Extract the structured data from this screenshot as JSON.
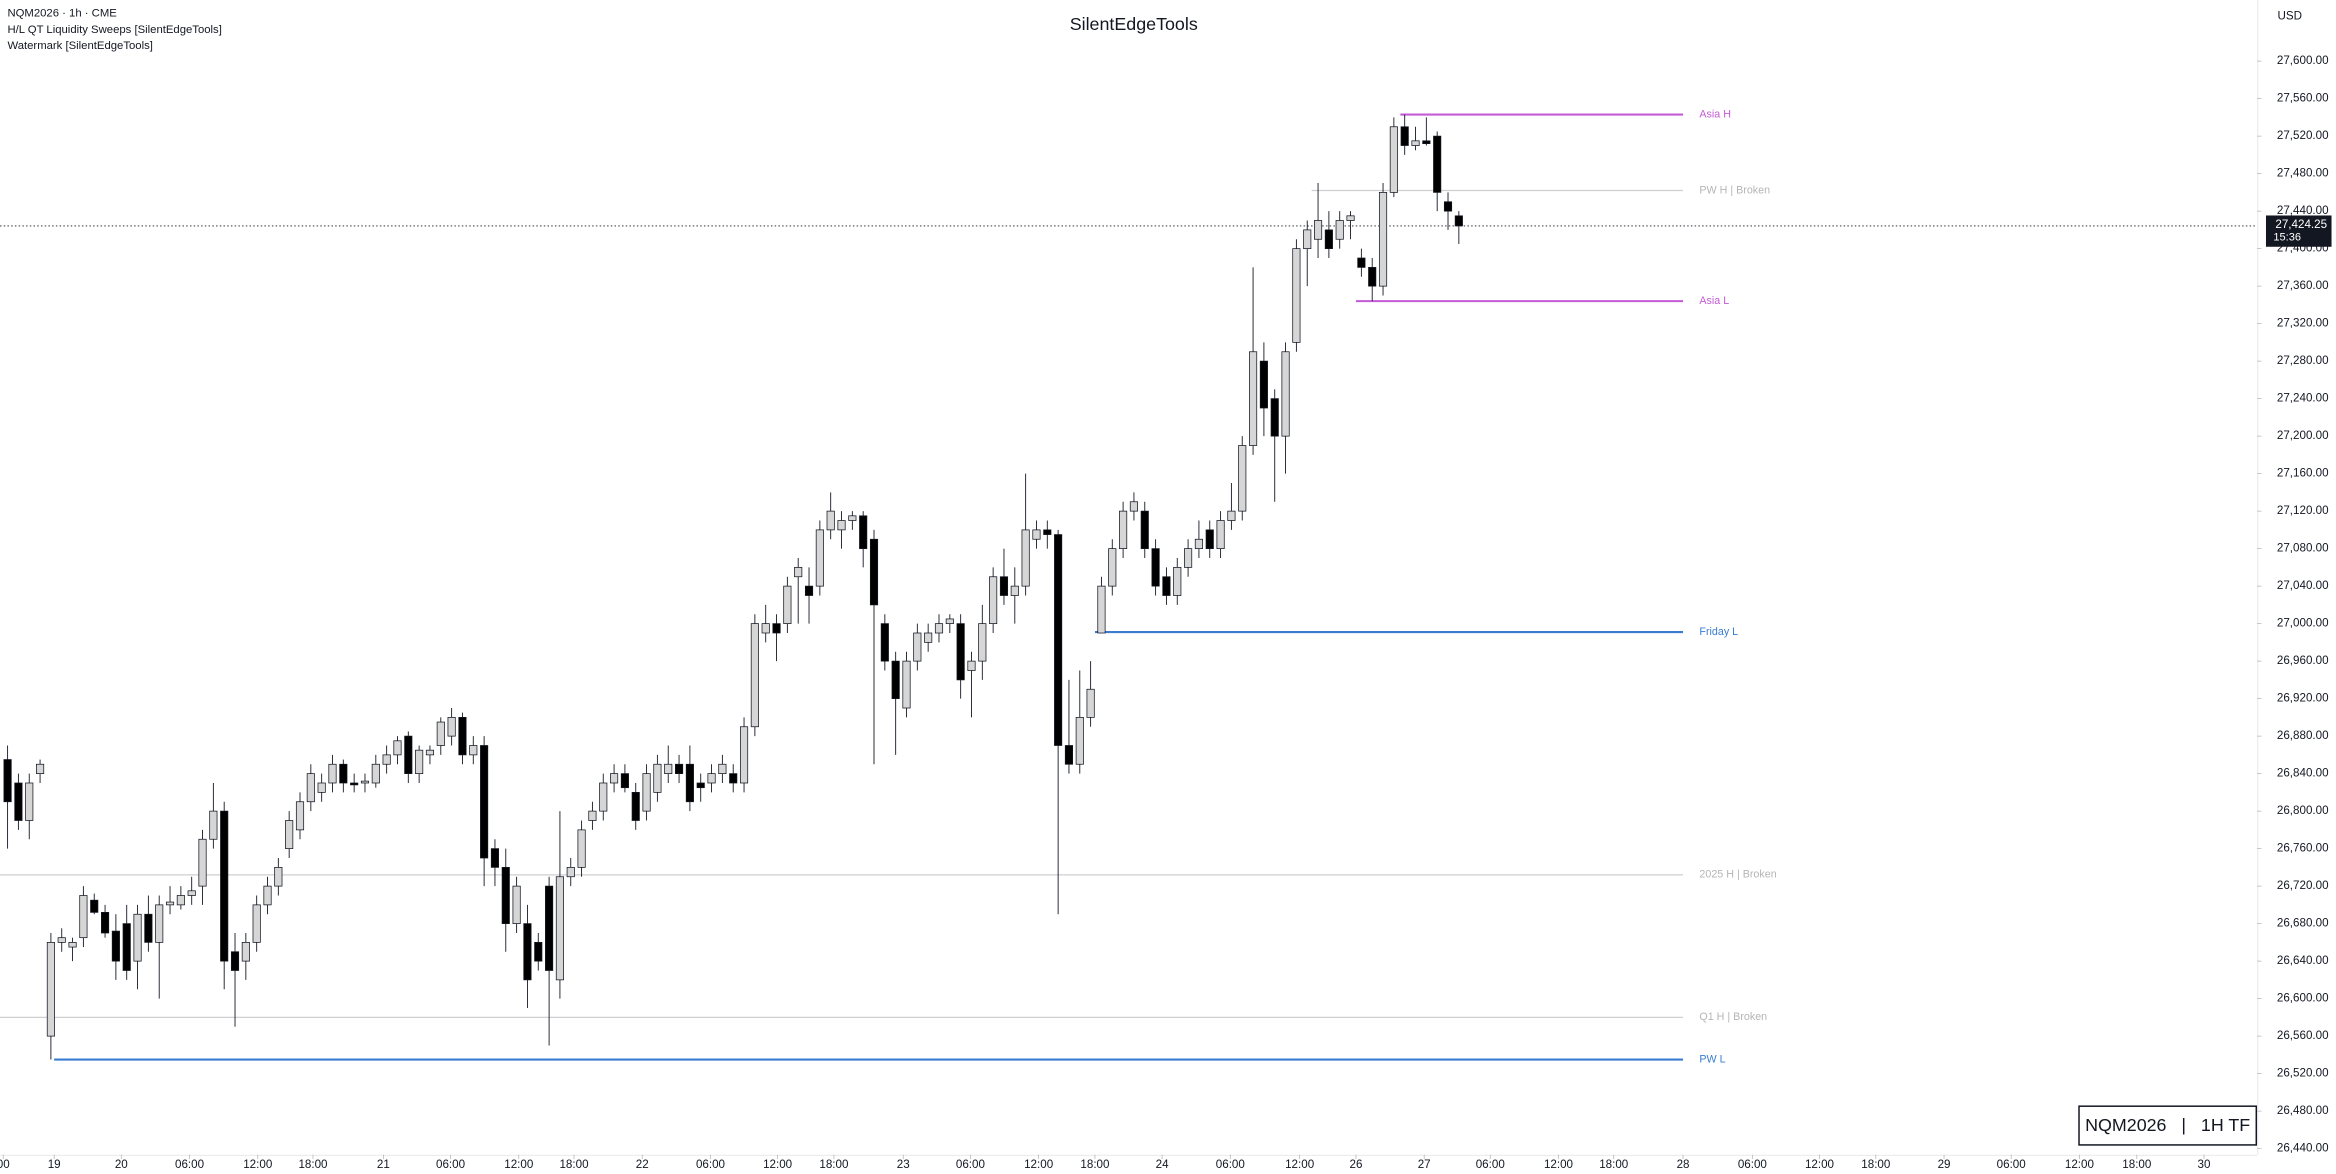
{
  "chart_data": {
    "type": "candlestick",
    "title": "SilentEdgeTools",
    "header": [
      "NQM2026 · 1h · CME",
      "H/L QT Liquidity Sweeps [SilentEdgeTools]",
      "Watermark [SilentEdgeTools]"
    ],
    "currency": "USD",
    "watermark": "NQM2026   |   1H TF",
    "up_color": "#d6d6d6",
    "down_color": "#000000",
    "xlim": [
      -0.7,
      207.7
    ],
    "ylim": [
      26433.6,
      27665.2
    ],
    "xticks": [
      {
        "value": -0.4,
        "label": "00"
      },
      {
        "value": 4.3,
        "label": "19"
      },
      {
        "value": 10.5,
        "label": "20"
      },
      {
        "value": 16.8,
        "label": "06:00"
      },
      {
        "value": 23.1,
        "label": "12:00"
      },
      {
        "value": 28.2,
        "label": "18:00"
      },
      {
        "value": 34.7,
        "label": "21"
      },
      {
        "value": 40.9,
        "label": "06:00"
      },
      {
        "value": 47.2,
        "label": "12:00"
      },
      {
        "value": 52.3,
        "label": "18:00"
      },
      {
        "value": 58.6,
        "label": "22"
      },
      {
        "value": 64.9,
        "label": "06:00"
      },
      {
        "value": 71.1,
        "label": "12:00"
      },
      {
        "value": 76.3,
        "label": "18:00"
      },
      {
        "value": 82.7,
        "label": "23"
      },
      {
        "value": 88.9,
        "label": "06:00"
      },
      {
        "value": 95.2,
        "label": "12:00"
      },
      {
        "value": 100.4,
        "label": "18:00"
      },
      {
        "value": 106.6,
        "label": "24"
      },
      {
        "value": 112.9,
        "label": "06:00"
      },
      {
        "value": 119.3,
        "label": "12:00"
      },
      {
        "value": 124.5,
        "label": "26"
      },
      {
        "value": 130.8,
        "label": "27"
      },
      {
        "value": 136.9,
        "label": "06:00"
      },
      {
        "value": 143.2,
        "label": "12:00"
      },
      {
        "value": 148.3,
        "label": "18:00"
      },
      {
        "value": 154.7,
        "label": "28"
      },
      {
        "value": 161.1,
        "label": "06:00"
      },
      {
        "value": 167.3,
        "label": "12:00"
      },
      {
        "value": 172.5,
        "label": "18:00"
      },
      {
        "value": 178.8,
        "label": "29"
      },
      {
        "value": 185.0,
        "label": "06:00"
      },
      {
        "value": 191.3,
        "label": "12:00"
      },
      {
        "value": 196.6,
        "label": "18:00"
      },
      {
        "value": 202.8,
        "label": "30"
      }
    ],
    "yticks": [
      {
        "value": 27600,
        "label": "27,600.00"
      },
      {
        "value": 27560,
        "label": "27,560.00"
      },
      {
        "value": 27520,
        "label": "27,520.00"
      },
      {
        "value": 27480,
        "label": "27,480.00"
      },
      {
        "value": 27440,
        "label": "27,440.00"
      },
      {
        "value": 27400,
        "label": "27,400.00"
      },
      {
        "value": 27360,
        "label": "27,360.00"
      },
      {
        "value": 27320,
        "label": "27,320.00"
      },
      {
        "value": 27280,
        "label": "27,280.00"
      },
      {
        "value": 27240,
        "label": "27,240.00"
      },
      {
        "value": 27200,
        "label": "27,200.00"
      },
      {
        "value": 27160,
        "label": "27,160.00"
      },
      {
        "value": 27120,
        "label": "27,120.00"
      },
      {
        "value": 27080,
        "label": "27,080.00"
      },
      {
        "value": 27040,
        "label": "27,040.00"
      },
      {
        "value": 27000,
        "label": "27,000.00"
      },
      {
        "value": 26960,
        "label": "26,960.00"
      },
      {
        "value": 26920,
        "label": "26,920.00"
      },
      {
        "value": 26880,
        "label": "26,880.00"
      },
      {
        "value": 26840,
        "label": "26,840.00"
      },
      {
        "value": 26800,
        "label": "26,800.00"
      },
      {
        "value": 26760,
        "label": "26,760.00"
      },
      {
        "value": 26720,
        "label": "26,720.00"
      },
      {
        "value": 26680,
        "label": "26,680.00"
      },
      {
        "value": 26640,
        "label": "26,640.00"
      },
      {
        "value": 26600,
        "label": "26,600.00"
      },
      {
        "value": 26560,
        "label": "26,560.00"
      },
      {
        "value": 26520,
        "label": "26,520.00"
      },
      {
        "value": 26480,
        "label": "26,480.00"
      },
      {
        "value": 26440,
        "label": "26,440.00"
      }
    ],
    "last_price": 27424.25,
    "last_price_label": "27,424.25",
    "countdown": "15:36",
    "level_end": 154.7,
    "levels": [
      {
        "name": "Asia H",
        "value": 27543,
        "start": 128.6,
        "color": "#c45ad6",
        "label_color": "#c45ad6",
        "width": 1.4
      },
      {
        "name": "PW H | Broken",
        "value": 27462,
        "start": 120.4,
        "color": "#cfcfcf",
        "label_color": "#b5b5b5",
        "width": 0.8
      },
      {
        "name": "Asia L",
        "value": 27344,
        "start": 124.5,
        "color": "#c45ad6",
        "label_color": "#c45ad6",
        "width": 1.4
      },
      {
        "name": "Friday L",
        "value": 26991,
        "start": 100.4,
        "color": "#3a7dd0",
        "label_color": "#3a7dd0",
        "width": 1.4
      },
      {
        "name": "2025 H | Broken",
        "value": 26732,
        "start": -0.7,
        "color": "#cfcfcf",
        "label_color": "#b5b5b5",
        "width": 0.8
      },
      {
        "name": "Q1 H | Broken",
        "value": 26580,
        "start": -0.7,
        "color": "#cfcfcf",
        "label_color": "#b5b5b5",
        "width": 0.8
      },
      {
        "name": "PW L",
        "value": 26535,
        "start": 4.3,
        "color": "#3a7dd0",
        "label_color": "#3a7dd0",
        "width": 1.4
      }
    ],
    "ohlc": [
      [
        26855,
        26870,
        26760,
        26810
      ],
      [
        26830,
        26840,
        26780,
        26790
      ],
      [
        26790,
        26840,
        26770,
        26830
      ],
      [
        26840,
        26855,
        26830,
        26850
      ],
      [
        26560,
        26670,
        26535,
        26660
      ],
      [
        26660,
        26675,
        26650,
        26665
      ],
      [
        26655,
        26665,
        26640,
        26660
      ],
      [
        26665,
        26720,
        26655,
        26710
      ],
      [
        26705,
        26712,
        26690,
        26692
      ],
      [
        26692,
        26700,
        26665,
        26670
      ],
      [
        26672,
        26690,
        26620,
        26640
      ],
      [
        26680,
        26700,
        26620,
        26630
      ],
      [
        26640,
        26700,
        26610,
        26690
      ],
      [
        26690,
        26710,
        26650,
        26660
      ],
      [
        26660,
        26710,
        26600,
        26700
      ],
      [
        26700,
        26720,
        26690,
        26703
      ],
      [
        26700,
        26720,
        26695,
        26710
      ],
      [
        26710,
        26730,
        26700,
        26715
      ],
      [
        26720,
        26780,
        26700,
        26770
      ],
      [
        26770,
        26830,
        26760,
        26800
      ],
      [
        26800,
        26810,
        26610,
        26640
      ],
      [
        26650,
        26670,
        26570,
        26630
      ],
      [
        26640,
        26670,
        26620,
        26660
      ],
      [
        26660,
        26710,
        26650,
        26700
      ],
      [
        26700,
        26730,
        26690,
        26720
      ],
      [
        26720,
        26750,
        26710,
        26740
      ],
      [
        26760,
        26800,
        26750,
        26790
      ],
      [
        26780,
        26820,
        26770,
        26810
      ],
      [
        26810,
        26850,
        26800,
        26840
      ],
      [
        26820,
        26840,
        26810,
        26830
      ],
      [
        26830,
        26860,
        26820,
        26850
      ],
      [
        26850,
        26855,
        26820,
        26830
      ],
      [
        26830,
        26840,
        26820,
        26828
      ],
      [
        26830,
        26840,
        26820,
        26832
      ],
      [
        26830,
        26860,
        26825,
        26850
      ],
      [
        26850,
        26870,
        26840,
        26860
      ],
      [
        26860,
        26880,
        26850,
        26875
      ],
      [
        26880,
        26885,
        26830,
        26840
      ],
      [
        26840,
        26870,
        26830,
        26865
      ],
      [
        26860,
        26870,
        26850,
        26865
      ],
      [
        26870,
        26900,
        26860,
        26895
      ],
      [
        26880,
        26910,
        26870,
        26900
      ],
      [
        26900,
        26905,
        26850,
        26860
      ],
      [
        26860,
        26880,
        26850,
        26870
      ],
      [
        26870,
        26880,
        26720,
        26750
      ],
      [
        26760,
        26770,
        26720,
        26740
      ],
      [
        26740,
        26760,
        26650,
        26680
      ],
      [
        26680,
        26730,
        26670,
        26720
      ],
      [
        26680,
        26700,
        26590,
        26620
      ],
      [
        26660,
        26670,
        26630,
        26640
      ],
      [
        26720,
        26730,
        26550,
        26630
      ],
      [
        26620,
        26800,
        26600,
        26730
      ],
      [
        26730,
        26750,
        26720,
        26740
      ],
      [
        26740,
        26790,
        26730,
        26780
      ],
      [
        26790,
        26810,
        26780,
        26800
      ],
      [
        26800,
        26840,
        26790,
        26830
      ],
      [
        26830,
        26850,
        26820,
        26840
      ],
      [
        26840,
        26850,
        26820,
        26825
      ],
      [
        26820,
        26830,
        26780,
        26790
      ],
      [
        26800,
        26850,
        26790,
        26840
      ],
      [
        26820,
        26860,
        26810,
        26850
      ],
      [
        26840,
        26870,
        26830,
        26850
      ],
      [
        26850,
        26860,
        26830,
        26840
      ],
      [
        26850,
        26870,
        26800,
        26810
      ],
      [
        26830,
        26840,
        26810,
        26825
      ],
      [
        26830,
        26850,
        26820,
        26840
      ],
      [
        26840,
        26860,
        26830,
        26850
      ],
      [
        26840,
        26850,
        26820,
        26830
      ],
      [
        26830,
        26900,
        26820,
        26890
      ],
      [
        26890,
        27010,
        26880,
        27000
      ],
      [
        26990,
        27020,
        26980,
        27000
      ],
      [
        27000,
        27010,
        26960,
        26990
      ],
      [
        27000,
        27050,
        26990,
        27040
      ],
      [
        27050,
        27070,
        27000,
        27060
      ],
      [
        27040,
        27060,
        27000,
        27030
      ],
      [
        27040,
        27110,
        27030,
        27100
      ],
      [
        27100,
        27140,
        27090,
        27120
      ],
      [
        27100,
        27120,
        27080,
        27110
      ],
      [
        27110,
        27120,
        27100,
        27115
      ],
      [
        27115,
        27120,
        27060,
        27080
      ],
      [
        27090,
        27100,
        26850,
        27020
      ],
      [
        27000,
        27010,
        26950,
        26960
      ],
      [
        26960,
        26970,
        26860,
        26920
      ],
      [
        26910,
        26970,
        26900,
        26960
      ],
      [
        26960,
        27000,
        26950,
        26990
      ],
      [
        26980,
        27000,
        26970,
        26990
      ],
      [
        26990,
        27010,
        26980,
        27000
      ],
      [
        27000,
        27010,
        26990,
        27005
      ],
      [
        27000,
        27010,
        26920,
        26940
      ],
      [
        26950,
        26970,
        26900,
        26960
      ],
      [
        26960,
        27020,
        26940,
        27000
      ],
      [
        27000,
        27060,
        26990,
        27050
      ],
      [
        27050,
        27080,
        27020,
        27030
      ],
      [
        27030,
        27060,
        27000,
        27040
      ],
      [
        27040,
        27160,
        27030,
        27100
      ],
      [
        27090,
        27110,
        27080,
        27100
      ],
      [
        27100,
        27110,
        27080,
        27095
      ],
      [
        27095,
        27100,
        26690,
        26870
      ],
      [
        26870,
        26940,
        26840,
        26850
      ],
      [
        26850,
        26950,
        26840,
        26900
      ],
      [
        26900,
        26960,
        26890,
        26930
      ],
      [
        26990,
        27050,
        26990,
        27040
      ],
      [
        27040,
        27090,
        27030,
        27080
      ],
      [
        27080,
        27130,
        27070,
        27120
      ],
      [
        27120,
        27140,
        27110,
        27130
      ],
      [
        27120,
        27130,
        27070,
        27080
      ],
      [
        27080,
        27090,
        27030,
        27040
      ],
      [
        27050,
        27060,
        27020,
        27030
      ],
      [
        27030,
        27070,
        27020,
        27060
      ],
      [
        27060,
        27090,
        27050,
        27080
      ],
      [
        27080,
        27110,
        27070,
        27090
      ],
      [
        27100,
        27110,
        27070,
        27080
      ],
      [
        27080,
        27120,
        27070,
        27110
      ],
      [
        27110,
        27150,
        27100,
        27120
      ],
      [
        27120,
        27200,
        27110,
        27190
      ],
      [
        27190,
        27380,
        27180,
        27290
      ],
      [
        27280,
        27300,
        27200,
        27230
      ],
      [
        27240,
        27250,
        27130,
        27200
      ],
      [
        27200,
        27300,
        27160,
        27290
      ],
      [
        27300,
        27410,
        27290,
        27400
      ],
      [
        27400,
        27430,
        27360,
        27420
      ],
      [
        27410,
        27470,
        27390,
        27430
      ],
      [
        27420,
        27440,
        27390,
        27400
      ],
      [
        27410,
        27440,
        27400,
        27430
      ],
      [
        27430,
        27440,
        27410,
        27435
      ],
      [
        27390,
        27400,
        27370,
        27380
      ],
      [
        27380,
        27390,
        27344,
        27360
      ],
      [
        27360,
        27470,
        27350,
        27460
      ],
      [
        27460,
        27540,
        27455,
        27530
      ],
      [
        27530,
        27543,
        27500,
        27510
      ],
      [
        27510,
        27530,
        27505,
        27515
      ],
      [
        27515,
        27540,
        27510,
        27512
      ],
      [
        27520,
        27525,
        27440,
        27460
      ],
      [
        27450,
        27460,
        27420,
        27440
      ],
      [
        27435,
        27440,
        27405,
        27424.25
      ]
    ]
  }
}
